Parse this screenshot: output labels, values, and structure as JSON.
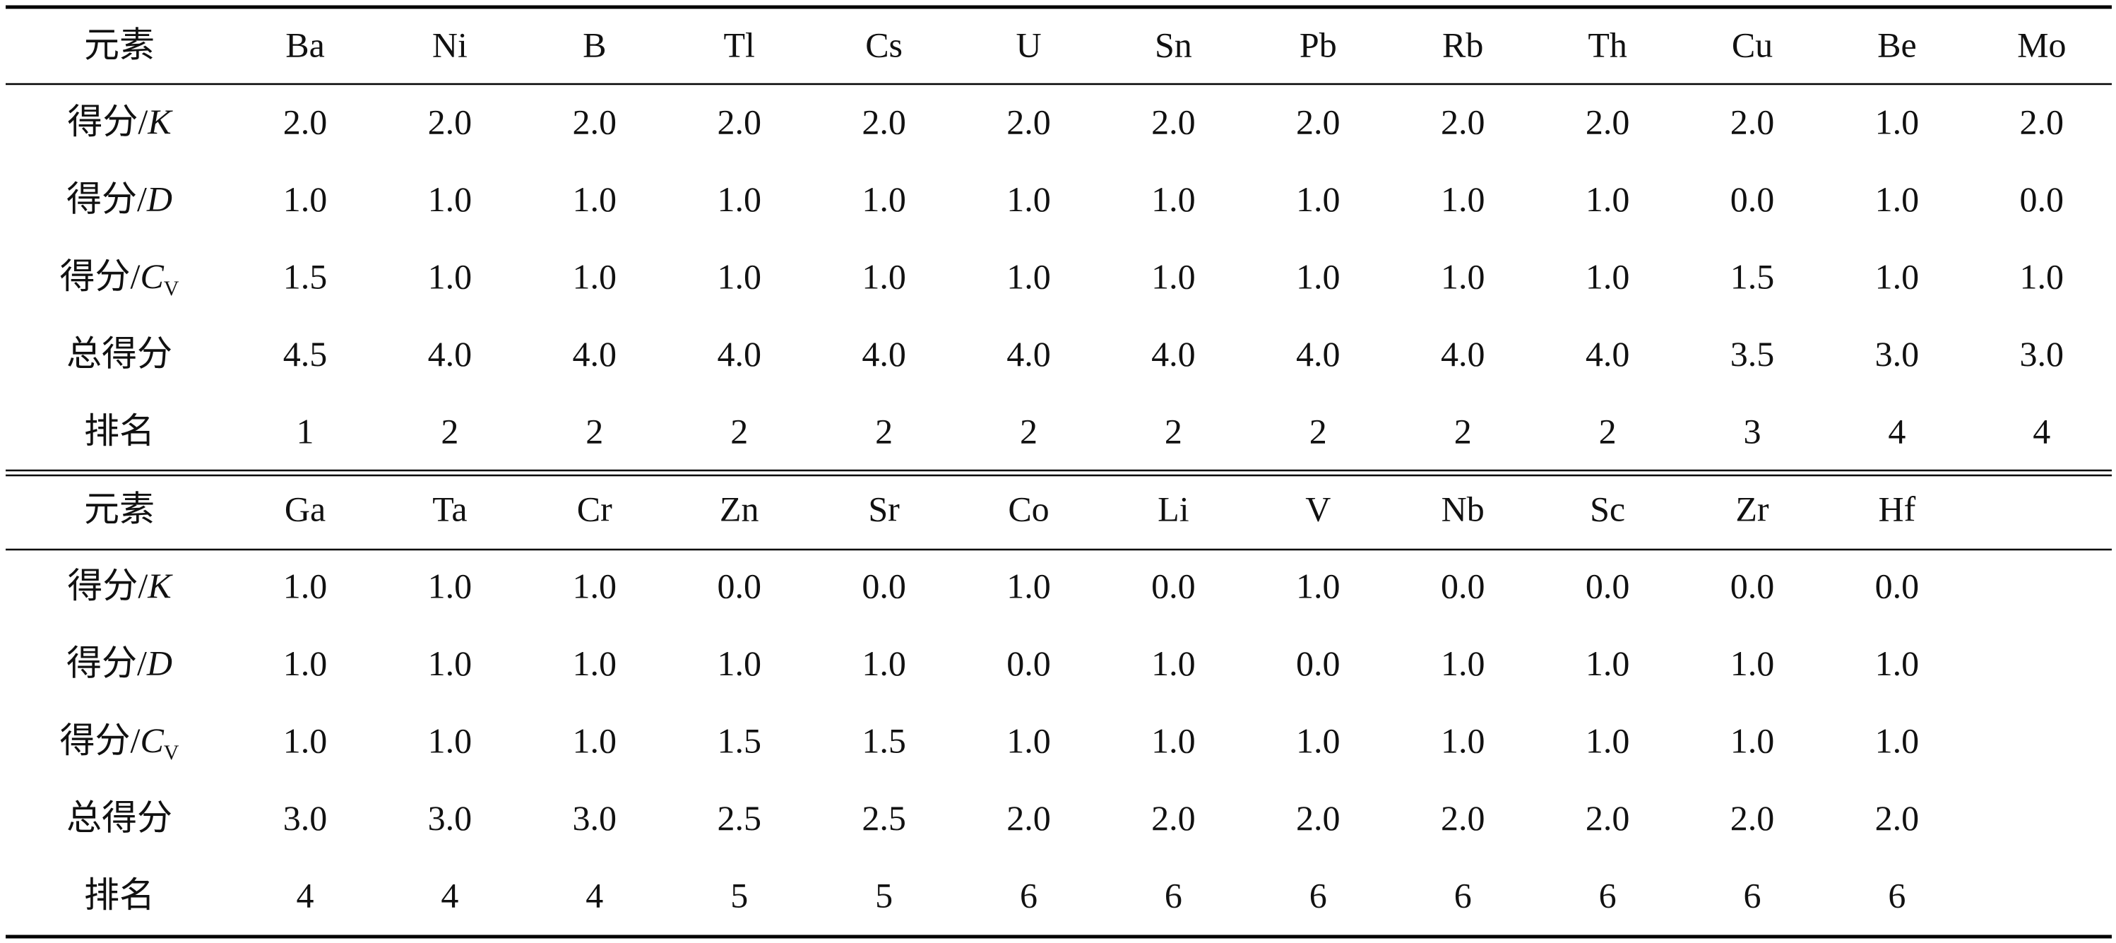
{
  "tables": [
    {
      "header": {
        "label": "元素",
        "elements": [
          "Ba",
          "Ni",
          "B",
          "Tl",
          "Cs",
          "U",
          "Sn",
          "Pb",
          "Rb",
          "Th",
          "Cu",
          "Be",
          "Mo"
        ]
      },
      "rows": [
        {
          "label": {
            "text": "得分/",
            "var": "K"
          },
          "values": [
            "2.0",
            "2.0",
            "2.0",
            "2.0",
            "2.0",
            "2.0",
            "2.0",
            "2.0",
            "2.0",
            "2.0",
            "2.0",
            "1.0",
            "2.0"
          ]
        },
        {
          "label": {
            "text": "得分/",
            "var": "D"
          },
          "values": [
            "1.0",
            "1.0",
            "1.0",
            "1.0",
            "1.0",
            "1.0",
            "1.0",
            "1.0",
            "1.0",
            "1.0",
            "0.0",
            "1.0",
            "0.0"
          ]
        },
        {
          "label": {
            "text": "得分/",
            "var": "C",
            "sub": "V"
          },
          "values": [
            "1.5",
            "1.0",
            "1.0",
            "1.0",
            "1.0",
            "1.0",
            "1.0",
            "1.0",
            "1.0",
            "1.0",
            "1.5",
            "1.0",
            "1.0"
          ]
        },
        {
          "label": {
            "text": "总得分"
          },
          "values": [
            "4.5",
            "4.0",
            "4.0",
            "4.0",
            "4.0",
            "4.0",
            "4.0",
            "4.0",
            "4.0",
            "4.0",
            "3.5",
            "3.0",
            "3.0"
          ]
        },
        {
          "label": {
            "text": "排名"
          },
          "values": [
            "1",
            "2",
            "2",
            "2",
            "2",
            "2",
            "2",
            "2",
            "2",
            "2",
            "3",
            "4",
            "4"
          ]
        }
      ]
    },
    {
      "header": {
        "label": "元素",
        "elements": [
          "Ga",
          "Ta",
          "Cr",
          "Zn",
          "Sr",
          "Co",
          "Li",
          "V",
          "Nb",
          "Sc",
          "Zr",
          "Hf"
        ]
      },
      "rows": [
        {
          "label": {
            "text": "得分/",
            "var": "K"
          },
          "values": [
            "1.0",
            "1.0",
            "1.0",
            "0.0",
            "0.0",
            "1.0",
            "0.0",
            "1.0",
            "0.0",
            "0.0",
            "0.0",
            "0.0"
          ]
        },
        {
          "label": {
            "text": "得分/",
            "var": "D"
          },
          "values": [
            "1.0",
            "1.0",
            "1.0",
            "1.0",
            "1.0",
            "0.0",
            "1.0",
            "0.0",
            "1.0",
            "1.0",
            "1.0",
            "1.0"
          ]
        },
        {
          "label": {
            "text": "得分/",
            "var": "C",
            "sub": "V"
          },
          "values": [
            "1.0",
            "1.0",
            "1.0",
            "1.5",
            "1.5",
            "1.0",
            "1.0",
            "1.0",
            "1.0",
            "1.0",
            "1.0",
            "1.0"
          ]
        },
        {
          "label": {
            "text": "总得分"
          },
          "values": [
            "3.0",
            "3.0",
            "3.0",
            "2.5",
            "2.5",
            "2.0",
            "2.0",
            "2.0",
            "2.0",
            "2.0",
            "2.0",
            "2.0"
          ]
        },
        {
          "label": {
            "text": "排名"
          },
          "values": [
            "4",
            "4",
            "4",
            "5",
            "5",
            "6",
            "6",
            "6",
            "6",
            "6",
            "6",
            "6"
          ]
        }
      ]
    }
  ]
}
